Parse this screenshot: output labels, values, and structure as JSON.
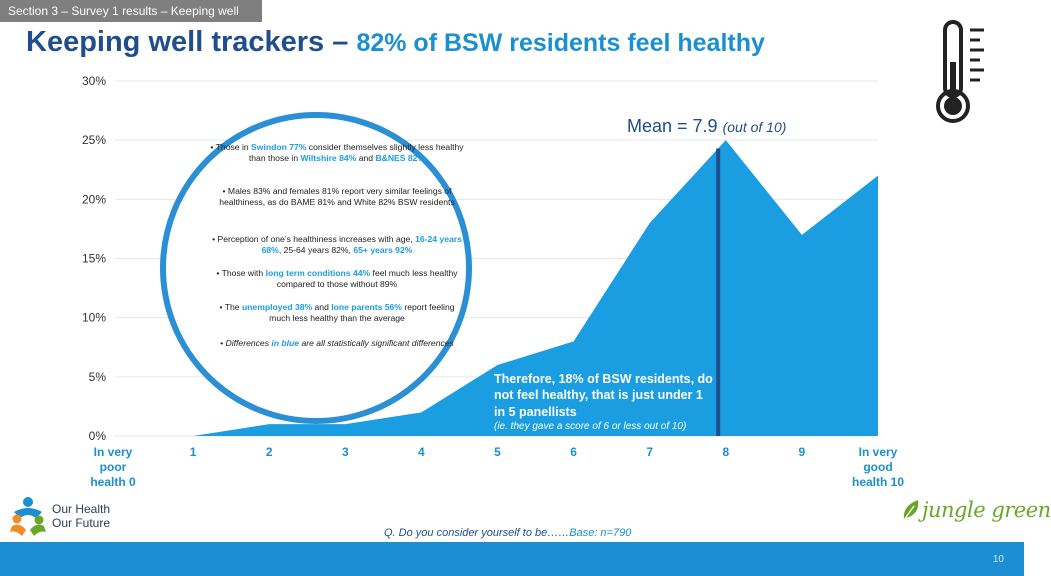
{
  "section_tab": "Section 3 – Survey 1 results – Keeping well",
  "title": {
    "main": "Keeping well trackers – ",
    "highlight": "82% of BSW residents feel healthy"
  },
  "mean_label": {
    "text": "Mean = 7.9 ",
    "sub": "(out of 10)"
  },
  "callout": {
    "bullets": [
      {
        "parts": [
          {
            "t": "Those in "
          },
          {
            "t": "Swindon 77%",
            "hl": true
          },
          {
            "t": " consider themselves slightly less healthy than those in "
          },
          {
            "t": "Wiltshire 84%",
            "hl": true
          },
          {
            "t": " and "
          },
          {
            "t": "B&NES 82%",
            "hl": true
          }
        ]
      },
      {
        "parts": [
          {
            "t": "Males 83% and females 81% report very similar feelings of healthiness, as do BAME 81% and White 82% BSW residents"
          }
        ]
      },
      {
        "parts": [
          {
            "t": "Perception of one’s healthiness increases with age, "
          },
          {
            "t": "16-24 years 68%",
            "hl": true
          },
          {
            "t": ", 25-64 years 82%, "
          },
          {
            "t": "65+ years 92%",
            "hl": true
          }
        ]
      },
      {
        "parts": [
          {
            "t": "Those with "
          },
          {
            "t": "long term conditions 44%",
            "hl": true
          },
          {
            "t": " feel much less healthy compared to those without 89%"
          }
        ]
      },
      {
        "parts": [
          {
            "t": "The "
          },
          {
            "t": "unemployed 38%",
            "hl": true
          },
          {
            "t": " and "
          },
          {
            "t": "lone parents 56%",
            "hl": true
          },
          {
            "t": " report feeling much less healthy than the average"
          }
        ]
      },
      {
        "italic": true,
        "parts": [
          {
            "t": "Differences "
          },
          {
            "t": "in blue",
            "hl": true
          },
          {
            "t": " are all statistically significant differences"
          }
        ]
      }
    ]
  },
  "therefore": {
    "text": "Therefore, 18% of BSW residents, do not feel healthy, that is just under 1 in 5 panellists",
    "note": "(ie. they gave a score of 6 or less out of 10)"
  },
  "question": {
    "text": "Q. Do you consider yourself to be……",
    "base": "Base: n=790"
  },
  "logos": {
    "left_line1": "Our Health",
    "left_line2": "Our Future",
    "right": "jungle green"
  },
  "page_number": "10",
  "colors": {
    "area": "#1b9de2",
    "mean_line": "#1f4e8c",
    "title": "#1f4e8c",
    "highlight": "#1b8fd2",
    "callout_border": "#2b8fd6"
  },
  "chart_data": {
    "type": "area",
    "x": [
      0,
      1,
      2,
      3,
      4,
      5,
      6,
      7,
      8,
      9,
      10
    ],
    "x_tick_labels": [
      [
        "In very",
        "poor",
        "health 0"
      ],
      [
        "1"
      ],
      [
        "2"
      ],
      [
        "3"
      ],
      [
        "4"
      ],
      [
        "5"
      ],
      [
        "6"
      ],
      [
        "7"
      ],
      [
        "8"
      ],
      [
        "9"
      ],
      [
        "In very",
        "good",
        "health 10"
      ]
    ],
    "series": [
      {
        "values": [
          0,
          0,
          1,
          1,
          2,
          6,
          8,
          18,
          25,
          17,
          22
        ]
      }
    ],
    "ylim": [
      0,
      30
    ],
    "y_ticks": [
      0,
      5,
      10,
      15,
      20,
      25,
      30
    ],
    "y_tick_labels": [
      "0%",
      "5%",
      "10%",
      "15%",
      "20%",
      "25%",
      "30%"
    ],
    "mean": 7.9,
    "grid": true
  }
}
